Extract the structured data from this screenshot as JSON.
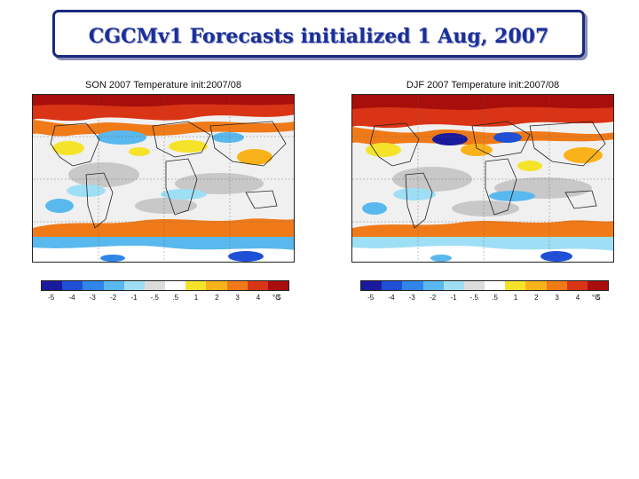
{
  "title": "CGCMv1 Forecasts initialized 1 Aug, 2007",
  "panels": [
    {
      "title": "SON 2007 Temperature init:2007/08"
    },
    {
      "title": "DJF 2007 Temperature init:2007/08"
    }
  ],
  "colorbar": {
    "colors": [
      "#1a1a9c",
      "#1f4fd6",
      "#2f86e6",
      "#59b8ee",
      "#9fdff5",
      "#dcdcdc",
      "#ffffff",
      "#f5e32a",
      "#f9b21a",
      "#f07a18",
      "#d93415",
      "#a80e0c"
    ],
    "labels": [
      "-5",
      "-4",
      "-3",
      "-2",
      "-1",
      "-.5",
      ".5",
      "1",
      "2",
      "3",
      "4",
      "5"
    ],
    "unit": "°C"
  },
  "colors": {
    "title_text": "#1a2f9a",
    "title_border": "#1b2a7a"
  }
}
